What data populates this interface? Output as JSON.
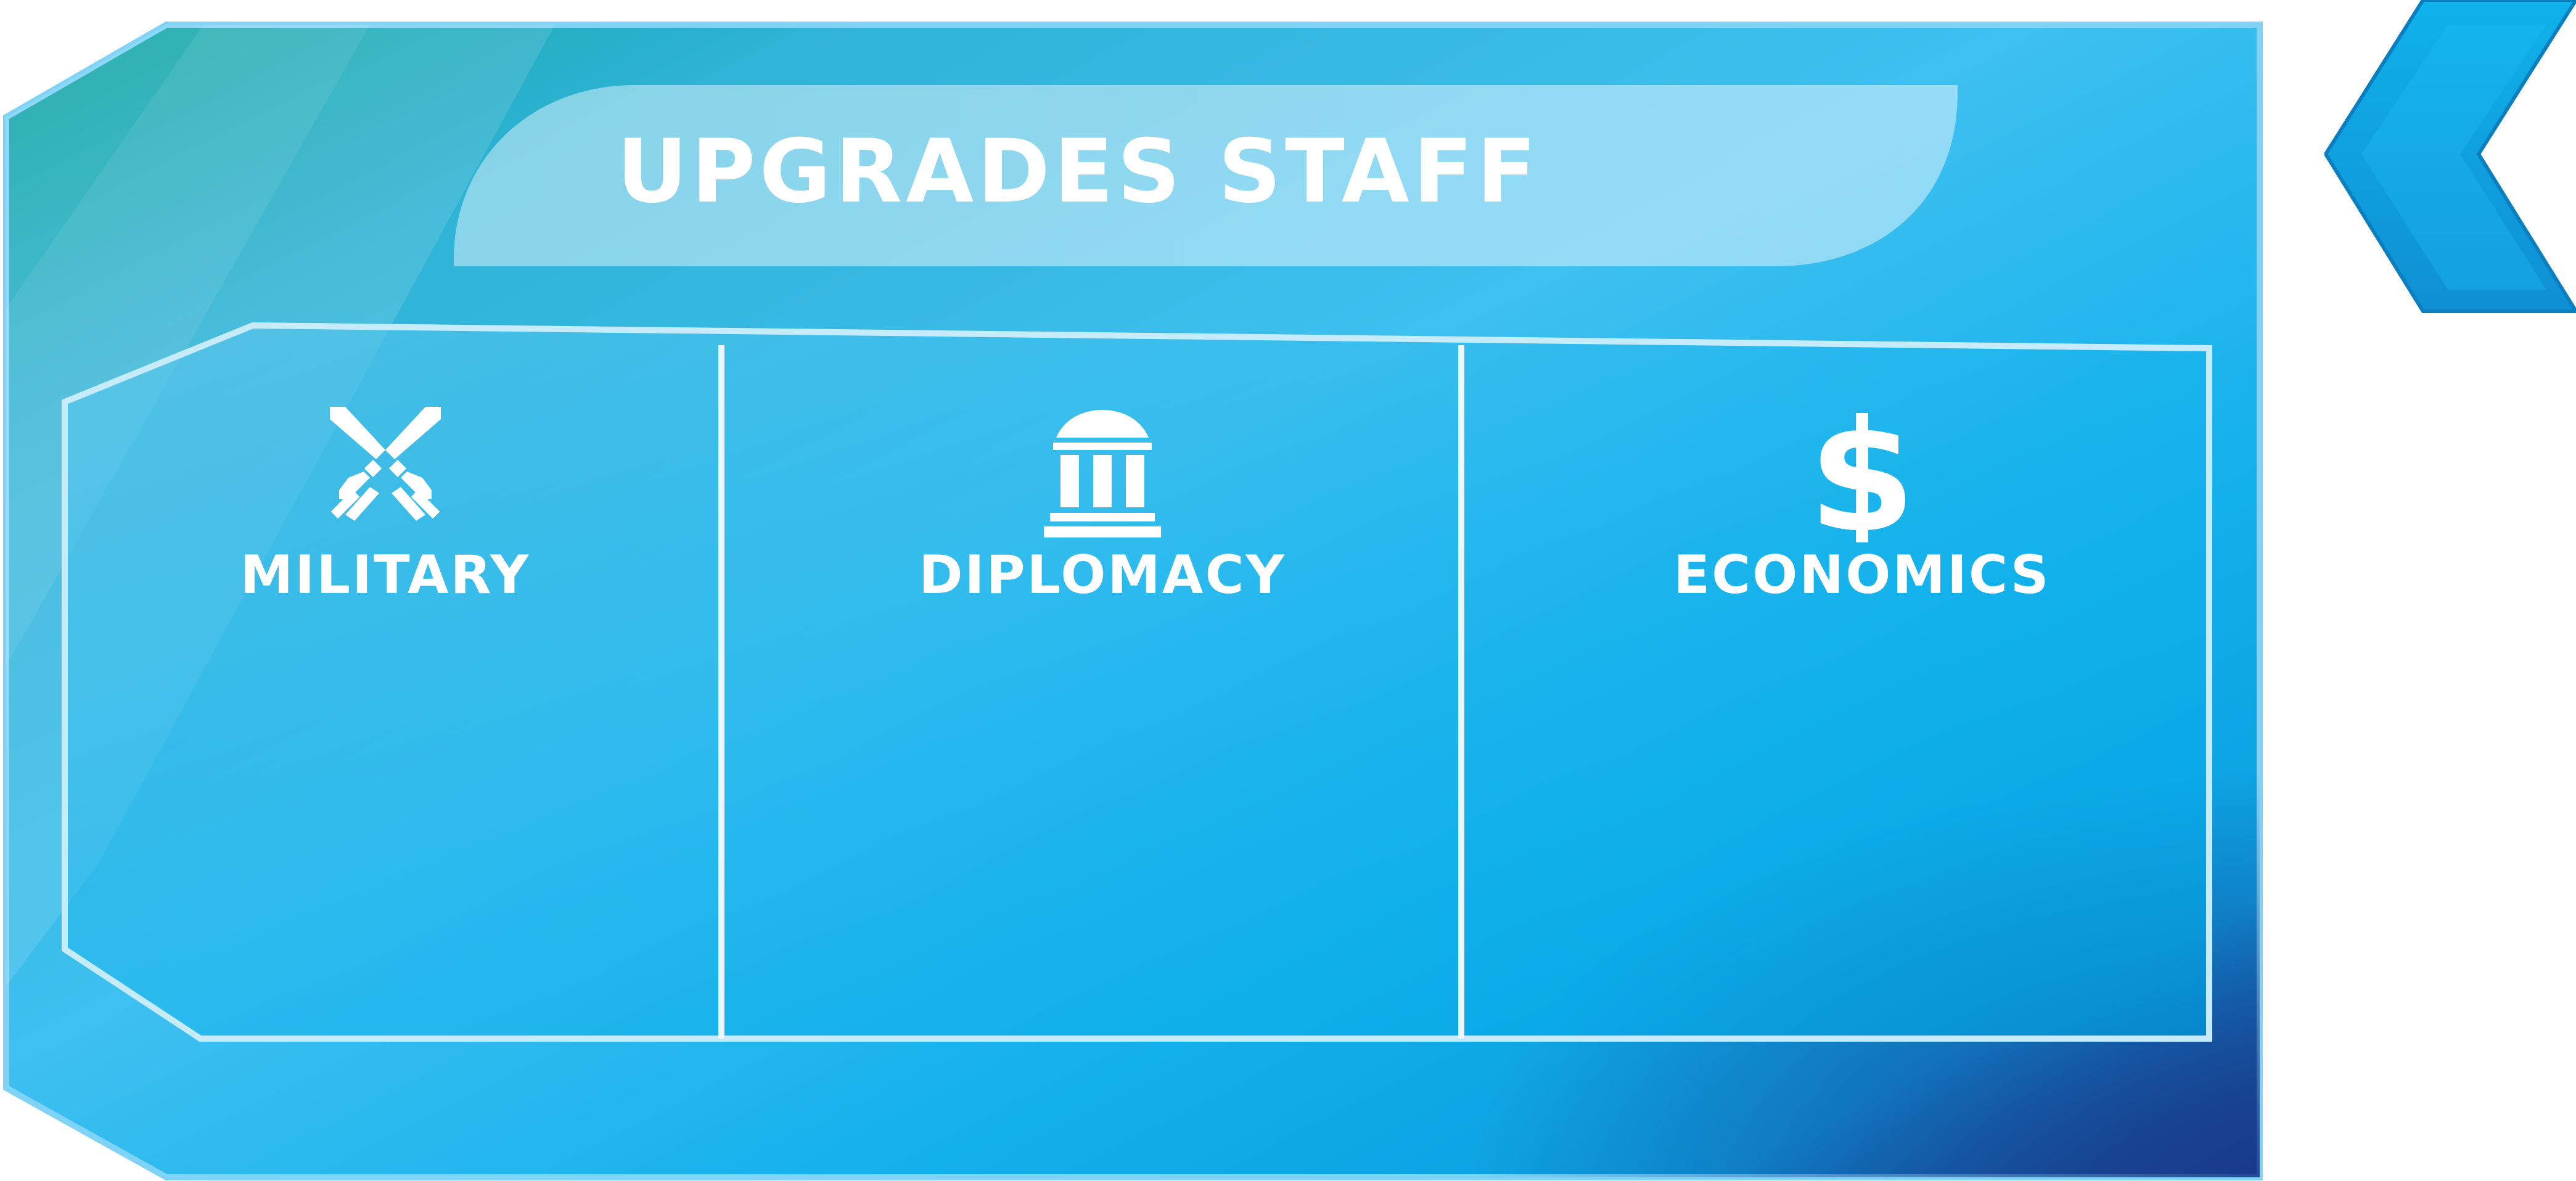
{
  "panel": {
    "title": "UPGRADES STAFF"
  },
  "categories": [
    {
      "id": "military",
      "label": "MILITARY",
      "icon": "crossed-swords-icon"
    },
    {
      "id": "diplomacy",
      "label": "DIPLOMACY",
      "icon": "government-building-icon"
    },
    {
      "id": "economics",
      "label": "ECONOMICS",
      "icon": "dollar-sign-icon"
    }
  ],
  "back_button": {
    "icon": "chevron-left-icon"
  },
  "colors": {
    "panel_teal": "#0ea5a0",
    "panel_cyan": "#29b6ee",
    "panel_blue": "#0aa5e6",
    "panel_dark": "#123c8c",
    "border_light": "#bfe9fb",
    "text": "#ffffff"
  }
}
